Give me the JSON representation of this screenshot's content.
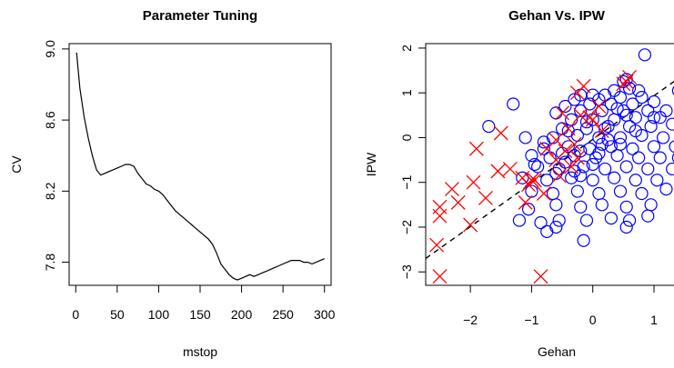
{
  "chart_data": [
    {
      "type": "line",
      "title": "Parameter Tuning",
      "xlabel": "mstop",
      "ylabel": "CV",
      "xlim": [
        -8,
        308
      ],
      "ylim": [
        7.67,
        9.03
      ],
      "xticks": [
        0,
        50,
        100,
        150,
        200,
        250,
        300
      ],
      "yticks": [
        7.8,
        8.2,
        8.6,
        9.0
      ],
      "ytick_labels": [
        "7.8",
        "8.2",
        "8.6",
        "9.0"
      ],
      "grid": false,
      "series": [
        {
          "x": [
            1,
            5,
            10,
            15,
            20,
            25,
            30,
            35,
            40,
            45,
            50,
            55,
            60,
            65,
            70,
            75,
            80,
            85,
            90,
            95,
            100,
            105,
            110,
            115,
            120,
            125,
            130,
            135,
            140,
            145,
            150,
            155,
            160,
            165,
            170,
            175,
            180,
            185,
            190,
            195,
            200,
            205,
            210,
            215,
            220,
            225,
            230,
            235,
            240,
            245,
            250,
            255,
            260,
            265,
            270,
            275,
            280,
            285,
            290,
            295,
            300
          ],
          "y": [
            8.98,
            8.78,
            8.62,
            8.5,
            8.4,
            8.32,
            8.29,
            8.3,
            8.31,
            8.32,
            8.33,
            8.34,
            8.35,
            8.35,
            8.34,
            8.3,
            8.27,
            8.24,
            8.23,
            8.21,
            8.2,
            8.18,
            8.15,
            8.12,
            8.09,
            8.07,
            8.05,
            8.03,
            8.01,
            7.99,
            7.97,
            7.95,
            7.93,
            7.9,
            7.85,
            7.79,
            7.76,
            7.73,
            7.71,
            7.7,
            7.71,
            7.72,
            7.73,
            7.72,
            7.73,
            7.74,
            7.75,
            7.76,
            7.77,
            7.78,
            7.79,
            7.8,
            7.81,
            7.81,
            7.81,
            7.8,
            7.8,
            7.79,
            7.8,
            7.81,
            7.82
          ],
          "color": "#000000"
        }
      ]
    },
    {
      "type": "scatter",
      "title": "Gehan Vs. IPW",
      "xlabel": "Gehan",
      "ylabel": "IPW",
      "xlim": [
        -2.73,
        1.55
      ],
      "ylim": [
        -3.3,
        2.1
      ],
      "xticks": [
        -2,
        -1,
        0,
        1
      ],
      "yticks": [
        -3,
        -2,
        -1,
        0,
        1,
        2
      ],
      "grid": false,
      "reference_line": {
        "style": "dashed",
        "color": "#000000",
        "from": [
          -2.73,
          -2.7
        ],
        "to": [
          1.55,
          1.47
        ]
      },
      "series": [
        {
          "marker": "circle-open",
          "color": "#0000ff",
          "points": [
            [
              0.85,
              1.85
            ],
            [
              0.55,
              1.3
            ],
            [
              0.5,
              1.25
            ],
            [
              0.6,
              1.1
            ],
            [
              0.75,
              1.05
            ],
            [
              1.4,
              1.05
            ],
            [
              0.35,
              1.05
            ],
            [
              0.2,
              0.95
            ],
            [
              0.0,
              0.95
            ],
            [
              -0.2,
              0.95
            ],
            [
              0.8,
              0.9
            ],
            [
              0.45,
              0.9
            ],
            [
              0.1,
              0.85
            ],
            [
              -0.3,
              0.85
            ],
            [
              1.0,
              0.8
            ],
            [
              0.65,
              0.75
            ],
            [
              0.3,
              0.75
            ],
            [
              -0.05,
              0.75
            ],
            [
              -0.45,
              0.7
            ],
            [
              1.2,
              0.6
            ],
            [
              0.9,
              0.6
            ],
            [
              0.5,
              0.6
            ],
            [
              0.15,
              0.6
            ],
            [
              -0.2,
              0.6
            ],
            [
              -0.6,
              0.55
            ],
            [
              1.1,
              0.45
            ],
            [
              0.7,
              0.45
            ],
            [
              0.35,
              0.4
            ],
            [
              0.0,
              0.4
            ],
            [
              -0.35,
              0.4
            ],
            [
              -1.3,
              0.75
            ],
            [
              1.3,
              0.3
            ],
            [
              0.95,
              0.25
            ],
            [
              0.6,
              0.25
            ],
            [
              0.25,
              0.25
            ],
            [
              -0.1,
              0.2
            ],
            [
              -0.5,
              0.2
            ],
            [
              -1.7,
              0.25
            ],
            [
              1.45,
              0.05
            ],
            [
              1.15,
              0.0
            ],
            [
              0.8,
              0.05
            ],
            [
              0.45,
              0.0
            ],
            [
              0.1,
              0.0
            ],
            [
              -0.25,
              0.05
            ],
            [
              -0.65,
              0.0
            ],
            [
              -1.1,
              0.0
            ],
            [
              1.35,
              -0.2
            ],
            [
              1.0,
              -0.2
            ],
            [
              0.65,
              -0.25
            ],
            [
              0.3,
              -0.2
            ],
            [
              -0.05,
              -0.25
            ],
            [
              -0.4,
              -0.2
            ],
            [
              -0.8,
              -0.25
            ],
            [
              1.4,
              -0.45
            ],
            [
              1.1,
              -0.45
            ],
            [
              0.75,
              -0.45
            ],
            [
              0.4,
              -0.4
            ],
            [
              0.05,
              -0.45
            ],
            [
              -0.3,
              -0.4
            ],
            [
              -0.7,
              -0.45
            ],
            [
              -1.0,
              -0.4
            ],
            [
              1.3,
              -0.7
            ],
            [
              0.9,
              -0.7
            ],
            [
              0.55,
              -0.65
            ],
            [
              0.2,
              -0.7
            ],
            [
              -0.15,
              -0.65
            ],
            [
              -0.55,
              -0.7
            ],
            [
              -0.9,
              -0.65
            ],
            [
              1.45,
              -1.0
            ],
            [
              1.05,
              -0.95
            ],
            [
              0.7,
              -0.95
            ],
            [
              0.35,
              -0.9
            ],
            [
              0.0,
              -0.95
            ],
            [
              -0.35,
              -0.9
            ],
            [
              -0.75,
              -0.95
            ],
            [
              -1.15,
              -0.9
            ],
            [
              1.2,
              -1.15
            ],
            [
              0.8,
              -1.25
            ],
            [
              0.45,
              -1.2
            ],
            [
              0.1,
              -1.25
            ],
            [
              -0.25,
              -1.2
            ],
            [
              -0.65,
              -1.25
            ],
            [
              -1.0,
              -1.2
            ],
            [
              0.95,
              -1.5
            ],
            [
              0.55,
              -1.55
            ],
            [
              0.15,
              -1.5
            ],
            [
              -0.2,
              -1.55
            ],
            [
              -0.6,
              -1.5
            ],
            [
              -1.05,
              -1.6
            ],
            [
              0.9,
              -1.75
            ],
            [
              0.6,
              -1.85
            ],
            [
              0.3,
              -1.8
            ],
            [
              -0.1,
              -1.85
            ],
            [
              -0.55,
              -1.85
            ],
            [
              -0.85,
              -1.9
            ],
            [
              -1.2,
              -1.85
            ],
            [
              0.55,
              -2.0
            ],
            [
              -0.6,
              -2.0
            ],
            [
              -0.75,
              -2.1
            ],
            [
              -0.15,
              -2.3
            ],
            [
              0.15,
              -0.15
            ],
            [
              -0.2,
              -0.3
            ],
            [
              0.4,
              0.65
            ],
            [
              -0.45,
              -0.55
            ],
            [
              0.0,
              -0.6
            ],
            [
              0.25,
              -0.05
            ],
            [
              -0.6,
              -0.8
            ],
            [
              -0.3,
              -0.75
            ],
            [
              -0.1,
              0.35
            ],
            [
              0.55,
              0.5
            ],
            [
              -0.4,
              0.15
            ],
            [
              -0.8,
              -0.1
            ],
            [
              0.1,
              -0.35
            ],
            [
              -0.2,
              -0.85
            ],
            [
              0.7,
              0.15
            ],
            [
              1.0,
              0.45
            ],
            [
              0.45,
              -0.15
            ],
            [
              -0.5,
              -0.35
            ],
            [
              -0.95,
              -0.6
            ],
            [
              0.2,
              0.2
            ]
          ]
        },
        {
          "marker": "x",
          "color": "#ff0000",
          "points": [
            [
              -2.5,
              -3.1
            ],
            [
              -0.85,
              -3.1
            ],
            [
              -2.55,
              -2.4
            ],
            [
              -2.0,
              -1.95
            ],
            [
              -2.5,
              -1.75
            ],
            [
              -2.5,
              -1.55
            ],
            [
              -2.2,
              -1.45
            ],
            [
              -2.3,
              -1.15
            ],
            [
              -1.95,
              -1.0
            ],
            [
              -1.75,
              -1.35
            ],
            [
              -1.55,
              -0.75
            ],
            [
              -1.35,
              -0.7
            ],
            [
              -1.15,
              -0.9
            ],
            [
              -1.05,
              -1.05
            ],
            [
              -0.95,
              -0.95
            ],
            [
              -0.8,
              -1.25
            ],
            [
              -1.1,
              -1.45
            ],
            [
              -0.6,
              -0.5
            ],
            [
              -0.45,
              -0.3
            ],
            [
              -0.3,
              -0.15
            ],
            [
              -0.6,
              -0.05
            ],
            [
              -0.75,
              -0.25
            ],
            [
              -1.5,
              0.1
            ],
            [
              -1.9,
              -0.25
            ],
            [
              -0.4,
              0.2
            ],
            [
              -0.2,
              0.5
            ],
            [
              -0.05,
              0.45
            ],
            [
              0.1,
              0.7
            ],
            [
              -0.25,
              1.0
            ],
            [
              -0.15,
              1.15
            ],
            [
              0.0,
              0.4
            ],
            [
              -0.5,
              0.55
            ],
            [
              0.15,
              0.15
            ],
            [
              0.5,
              1.2
            ],
            [
              0.55,
              1.25
            ],
            [
              0.6,
              1.35
            ],
            [
              -0.35,
              -0.65
            ],
            [
              -0.55,
              -0.85
            ],
            [
              -0.25,
              -0.45
            ],
            [
              -1.0,
              -0.95
            ]
          ]
        }
      ]
    }
  ]
}
